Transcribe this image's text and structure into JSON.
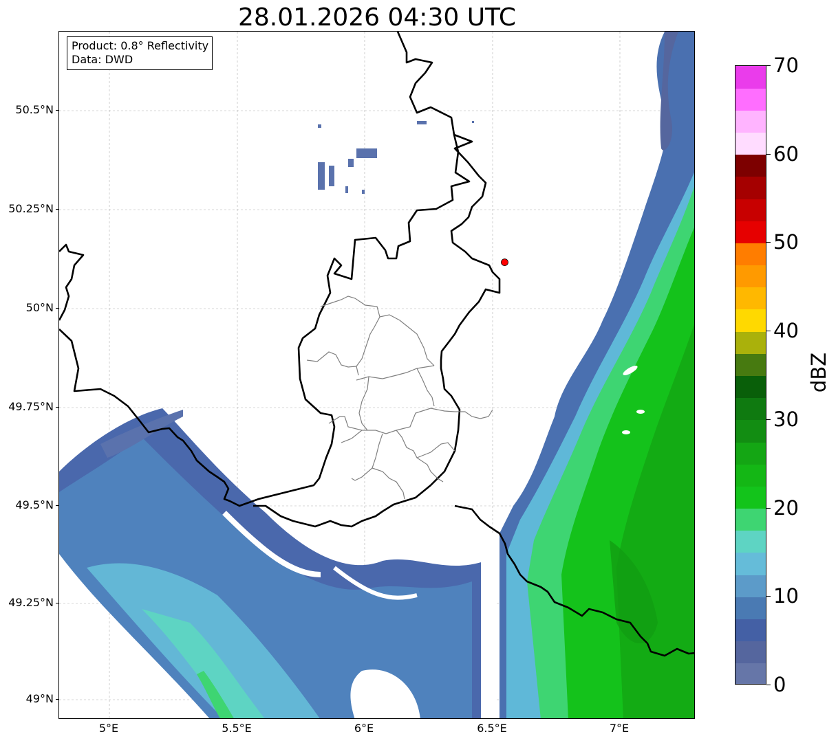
{
  "title": "28.01.2026 04:30 UTC",
  "info": {
    "product": "Product: 0.8° Reflectivity",
    "data": "Data: DWD"
  },
  "axes": {
    "lon_range": [
      4.8,
      7.3
    ],
    "lat_range": [
      48.95,
      50.695
    ],
    "lat_ticks": [
      {
        "value": 50.5,
        "label": "50.5°N"
      },
      {
        "value": 50.25,
        "label": "50.25°N"
      },
      {
        "value": 50.0,
        "label": "50°N"
      },
      {
        "value": 49.75,
        "label": "49.75°N"
      },
      {
        "value": 49.5,
        "label": "49.5°N"
      },
      {
        "value": 49.25,
        "label": "49.25°N"
      },
      {
        "value": 49.0,
        "label": "49°N"
      }
    ],
    "lon_ticks": [
      {
        "value": 5.0,
        "label": "5°E"
      },
      {
        "value": 5.5,
        "label": "5.5°E"
      },
      {
        "value": 6.0,
        "label": "6°E"
      },
      {
        "value": 6.5,
        "label": "6.5°E"
      },
      {
        "value": 7.0,
        "label": "7°E"
      }
    ]
  },
  "marker": {
    "lon": 6.55,
    "lat": 50.11,
    "color": "#ff0000"
  },
  "colorbar": {
    "label": "dBZ",
    "min": 0,
    "max": 70,
    "ticks": [
      {
        "value": 0,
        "label": "0"
      },
      {
        "value": 10,
        "label": "10"
      },
      {
        "value": 20,
        "label": "20"
      },
      {
        "value": 30,
        "label": "30"
      },
      {
        "value": 40,
        "label": "40"
      },
      {
        "value": 50,
        "label": "50"
      },
      {
        "value": 60,
        "label": "60"
      },
      {
        "value": 70,
        "label": "70"
      }
    ],
    "colors": [
      "#6676a8",
      "#55669e",
      "#4460a5",
      "#4a7ab3",
      "#5c9bc9",
      "#65bcd9",
      "#5ed4c3",
      "#3ed572",
      "#13c41b",
      "#14b715",
      "#14a614",
      "#128d12",
      "#0f7a10",
      "#095f09",
      "#477a10",
      "#aab10b",
      "#ffd900",
      "#ffb800",
      "#ff9a00",
      "#ff7d00",
      "#e60000",
      "#c80000",
      "#a50000",
      "#7d0000",
      "#ffdcff",
      "#ffb4ff",
      "#ff6eff",
      "#ea3ceb"
    ]
  }
}
